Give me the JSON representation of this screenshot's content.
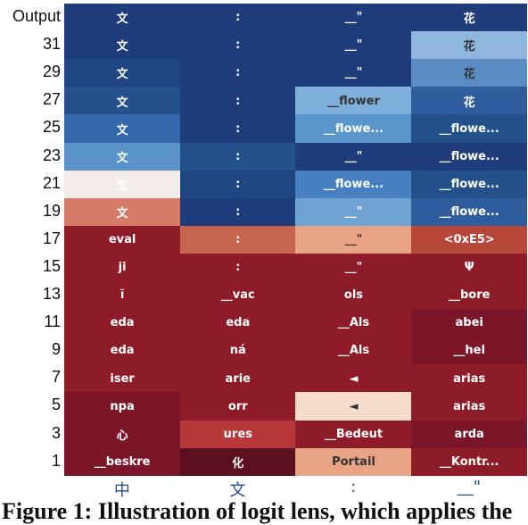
{
  "chart_data": {
    "type": "heatmap",
    "row_labels": [
      "Output",
      "31",
      "29",
      "27",
      "25",
      "23",
      "21",
      "19",
      "17",
      "15",
      "13",
      "11",
      "9",
      "7",
      "5",
      "3",
      "1"
    ],
    "column_labels": [
      "中",
      "文",
      ":",
      "__\""
    ],
    "cells": [
      [
        "文",
        ":",
        "__\"",
        "花"
      ],
      [
        "文",
        ":",
        "__\"",
        "花"
      ],
      [
        "文",
        ":",
        "__\"",
        "花"
      ],
      [
        "文",
        ":",
        "__flower",
        "花"
      ],
      [
        "文",
        ":",
        "__flowe...",
        "__flowe..."
      ],
      [
        "文",
        ":",
        "__\"",
        "__flowe..."
      ],
      [
        "文",
        ":",
        "__flowe...",
        "__flowe..."
      ],
      [
        "文",
        ":",
        "__\"",
        "__flowe..."
      ],
      [
        "eval",
        ":",
        "__\"",
        "<0xE5>"
      ],
      [
        "ji",
        ":",
        "__\"",
        "Ψ"
      ],
      [
        "ĭ",
        "__vac",
        "ols",
        "__bore"
      ],
      [
        "eda",
        "eda",
        "__Als",
        "abei"
      ],
      [
        "eda",
        "ná",
        "__Als",
        "__hel"
      ],
      [
        "iser",
        "arie",
        "◄",
        "arias"
      ],
      [
        "npa",
        "orr",
        "◄",
        "arias"
      ],
      [
        "心",
        "ures",
        "__Bedeut",
        "arda"
      ],
      [
        "__beskre",
        "化",
        "Portail",
        "__Kontr..."
      ]
    ],
    "cell_colors": [
      [
        "#1f3d7a",
        "#1f3d7a",
        "#1f3d7a",
        "#1f3d7a"
      ],
      [
        "#1f3d7a",
        "#1f3d7a",
        "#1f3d7a",
        "#8fb7de"
      ],
      [
        "#1f4582",
        "#1f3d7a",
        "#1f3d7a",
        "#5b8dc4"
      ],
      [
        "#24508c",
        "#1f3d7a",
        "#7fb0dc",
        "#2e5c9c"
      ],
      [
        "#3368ad",
        "#1f3d7a",
        "#5a95cc",
        "#24508c"
      ],
      [
        "#5a93c8",
        "#24508c",
        "#1f3d7a",
        "#1f3d7a"
      ],
      [
        "#f4ece9",
        "#1f4582",
        "#4680c0",
        "#24508c"
      ],
      [
        "#d57b68",
        "#1f3d7a",
        "#6fa3d4",
        "#2e5c9c"
      ],
      [
        "#8e1c28",
        "#c6644f",
        "#e9a385",
        "#b64738"
      ],
      [
        "#8e1c28",
        "#8e1c28",
        "#8e1c28",
        "#8e1c28"
      ],
      [
        "#8e1c28",
        "#8e1c28",
        "#8e1c28",
        "#8e1c28"
      ],
      [
        "#8e1c28",
        "#8e1c28",
        "#8e1c28",
        "#7a1628"
      ],
      [
        "#8e1c28",
        "#8e1c28",
        "#8e1c28",
        "#7a1628"
      ],
      [
        "#8e1c28",
        "#8e1c28",
        "#8e1c28",
        "#8e1c28"
      ],
      [
        "#7a1628",
        "#8e1c28",
        "#f6dccb",
        "#8e1c28"
      ],
      [
        "#7a1628",
        "#b8373a",
        "#8e1c28",
        "#7a1628"
      ],
      [
        "#7a1628",
        "#5e0f1f",
        "#e9a385",
        "#8e1c28"
      ]
    ],
    "dark_text_cells": [
      "3,2",
      "16,2",
      "14,2",
      "8,2",
      "1,3",
      "2,3"
    ]
  },
  "caption": "Figure 1: Illustration of logit lens, which applies the"
}
